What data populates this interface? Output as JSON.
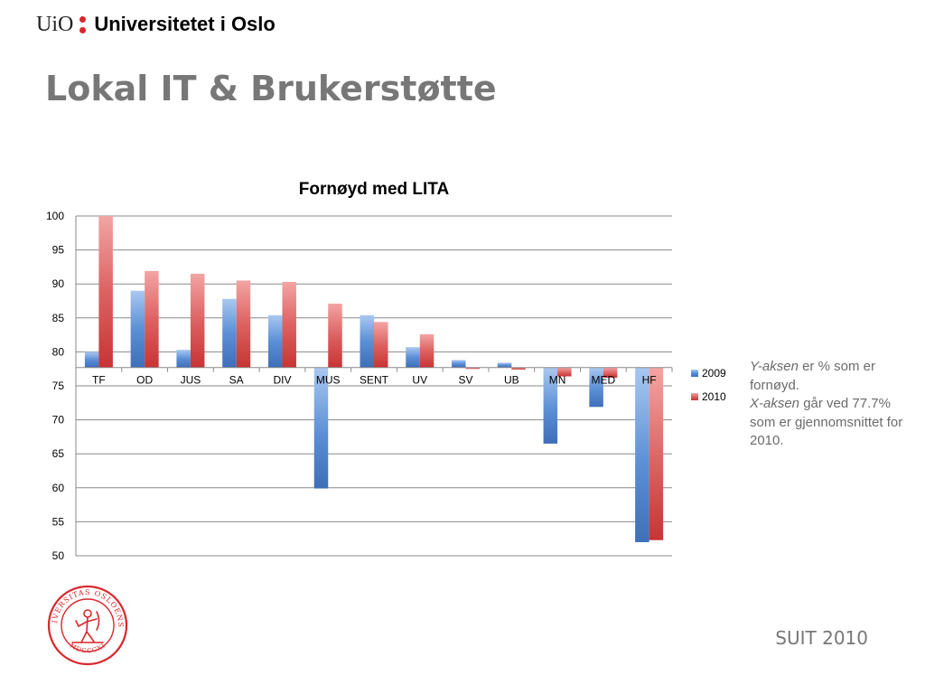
{
  "header": {
    "logo_short": "UiO",
    "logo_name": "Universitetet i Oslo"
  },
  "slide": {
    "title": "Lokal IT & Brukerstøtte",
    "footer": "SUIT 2010"
  },
  "note": {
    "line1_em": "Y-aksen",
    "line1_rest": " er % som er fornøyd.",
    "line2_em": "X-aksen",
    "line2_rest": " går ved 77.7% som er gjennomsnittet for 2010."
  },
  "seal": {
    "text": "UNIVERSITAS OSLOENSIS",
    "year": "MDCCCXI",
    "color": "#d9262b"
  },
  "chart_data": {
    "type": "bar",
    "title": "Fornøyd med LITA",
    "xlabel": "",
    "ylabel": "",
    "categories": [
      "TF",
      "OD",
      "JUS",
      "SA",
      "DIV",
      "MUS",
      "SENT",
      "UV",
      "SV",
      "UB",
      "MN",
      "MED",
      "HF"
    ],
    "baseline": 77.7,
    "ylim": [
      50,
      100
    ],
    "yticks": [
      "100",
      "95",
      "90",
      "85",
      "80",
      "75",
      "70",
      "65",
      "60",
      "55",
      "50"
    ],
    "grid": true,
    "legend_position": "right",
    "series": [
      {
        "name": "2009",
        "color": "#4f81bd",
        "values": [
          80.0,
          89.0,
          80.3,
          87.8,
          85.4,
          59.9,
          85.4,
          80.7,
          78.8,
          78.4,
          66.5,
          71.9,
          52.0
        ]
      },
      {
        "name": "2010",
        "color": "#c0504d",
        "values": [
          100.0,
          91.9,
          91.5,
          90.5,
          90.3,
          87.1,
          84.4,
          82.6,
          77.5,
          77.4,
          76.4,
          76.2,
          52.3
        ]
      }
    ]
  }
}
